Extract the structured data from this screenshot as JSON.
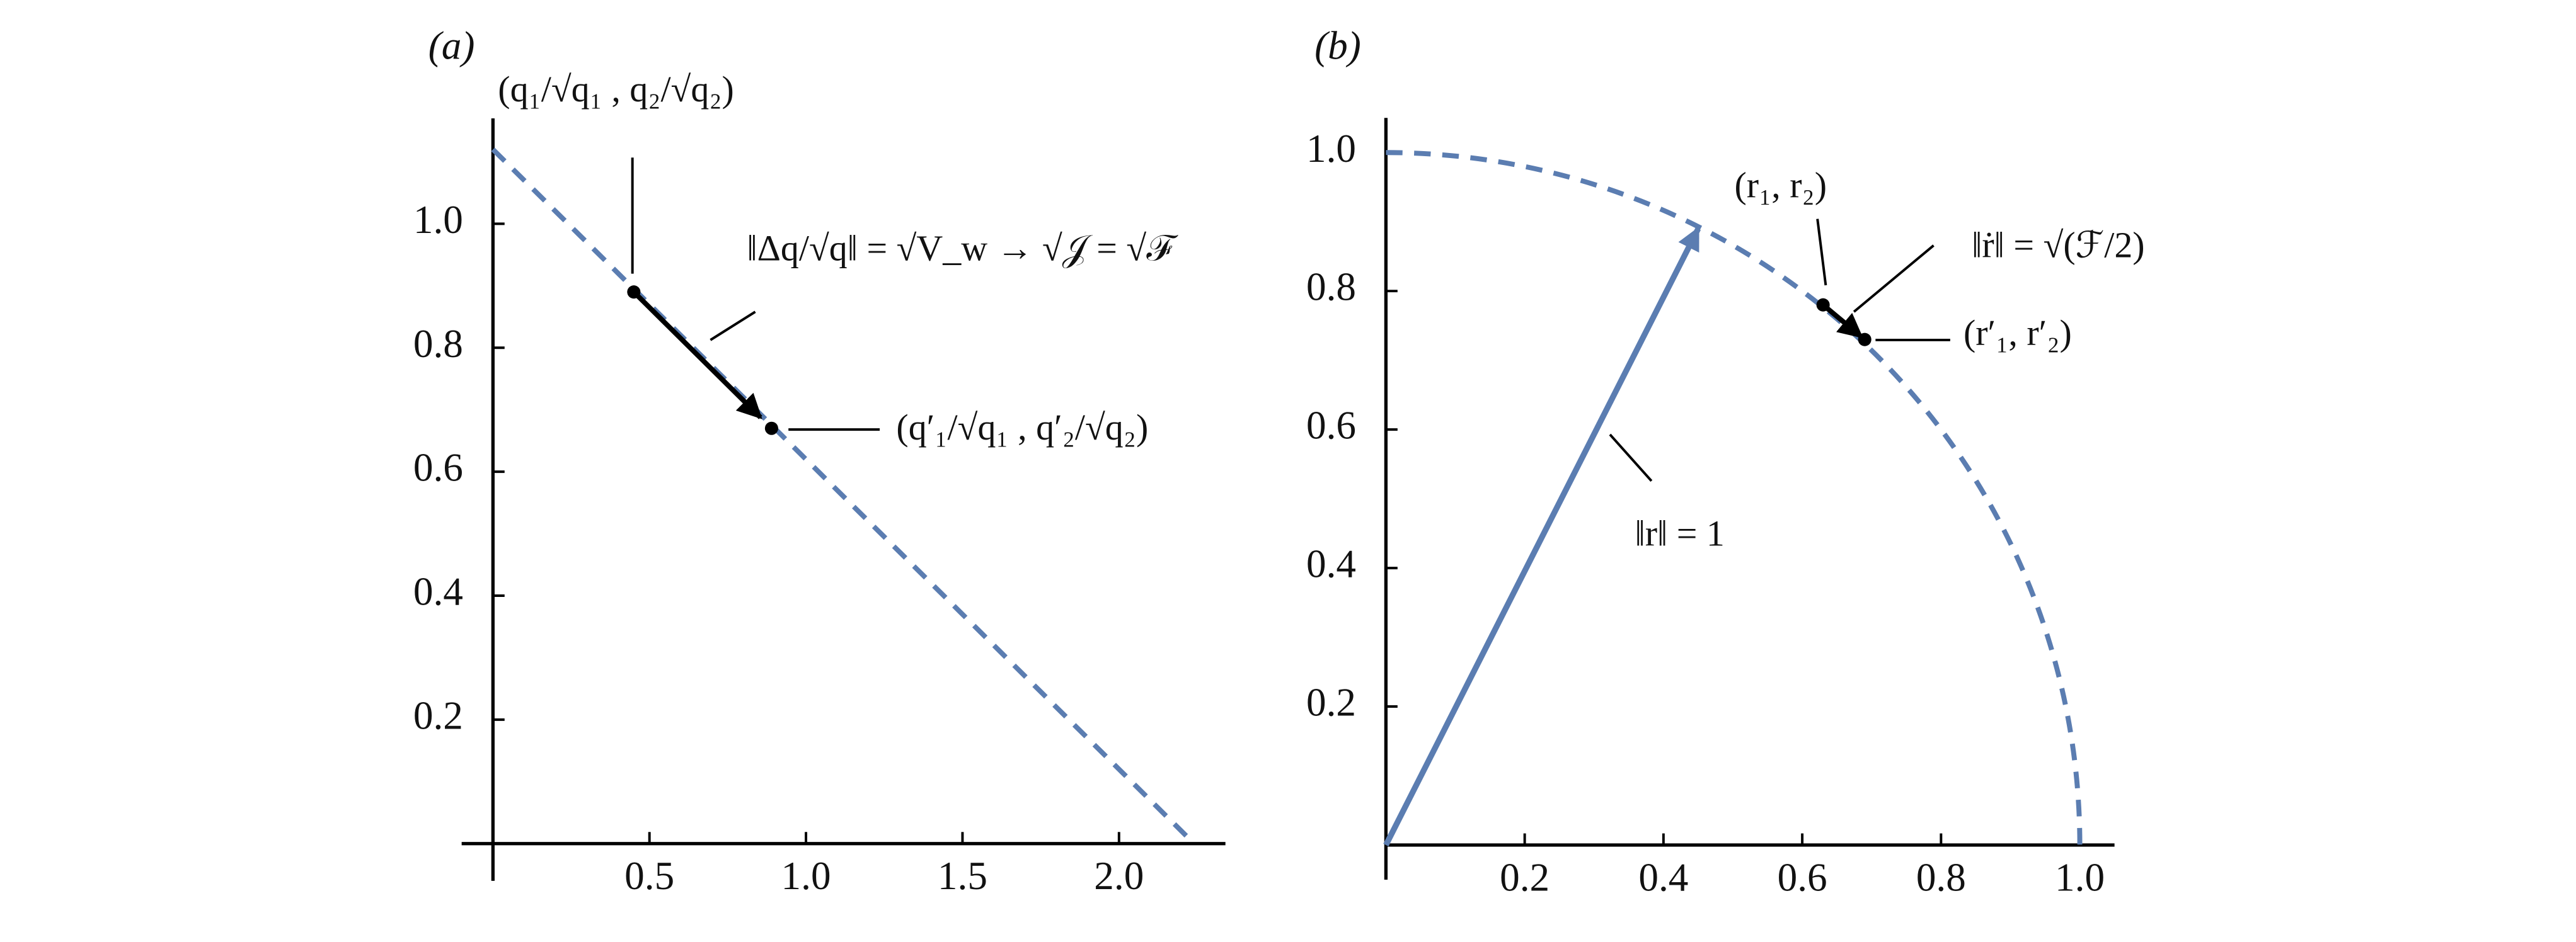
{
  "chart_data": [
    {
      "type": "line",
      "panel_label": "(a)",
      "x": [
        0,
        2.24
      ],
      "series": [
        {
          "values": [
            1.12,
            0
          ],
          "color": "#5b7db1",
          "dashed": true
        }
      ],
      "points": {
        "x": [
          0.45,
          0.89
        ],
        "y": [
          0.89,
          0.67
        ],
        "color": "#000000"
      },
      "xlim": [
        -0.1,
        2.34
      ],
      "ylim": [
        -0.06,
        1.17
      ],
      "xticks": [
        {
          "value": 0.5,
          "label": "0.5"
        },
        {
          "value": 1,
          "label": "1.0"
        },
        {
          "value": 1.5,
          "label": "1.5"
        },
        {
          "value": 2,
          "label": "2.0"
        }
      ],
      "yticks": [
        {
          "value": 0.2,
          "label": "0.2"
        },
        {
          "value": 0.4,
          "label": "0.4"
        },
        {
          "value": 0.6,
          "label": "0.6"
        },
        {
          "value": 0.8,
          "label": "0.8"
        },
        {
          "value": 1,
          "label": "1.0"
        }
      ],
      "annotations": [
        "(q₁/√q₁ , q₂/√q₂)",
        "‖Δq/√q‖ = √V_w → √𝒥 = √ℱ",
        "(q′₁/√q₁ , q′₂/√q₂)"
      ]
    },
    {
      "type": "arc",
      "panel_label": "(b)",
      "radius": 1,
      "color": "#5b7db1",
      "vector": {
        "x": 0.45,
        "y": 0.89
      },
      "points": {
        "x": [
          0.63,
          0.69
        ],
        "y": [
          0.78,
          0.73
        ],
        "color": "#000000"
      },
      "xlim": [
        0,
        1.05
      ],
      "ylim": [
        -0.05,
        1.05
      ],
      "xticks": [
        {
          "value": 0.2,
          "label": "0.2"
        },
        {
          "value": 0.4,
          "label": "0.4"
        },
        {
          "value": 0.6,
          "label": "0.6"
        },
        {
          "value": 0.8,
          "label": "0.8"
        },
        {
          "value": 1,
          "label": "1.0"
        }
      ],
      "yticks": [
        {
          "value": 0.2,
          "label": "0.2"
        },
        {
          "value": 0.4,
          "label": "0.4"
        },
        {
          "value": 0.6,
          "label": "0.6"
        },
        {
          "value": 0.8,
          "label": "0.8"
        },
        {
          "value": 1,
          "label": "1.0"
        }
      ],
      "annotations": [
        "(r₁, r₂)",
        "‖ṙ‖ = √(ℱ/2)",
        "(r′₁, r′₂)",
        "‖r‖ = 1"
      ]
    }
  ]
}
